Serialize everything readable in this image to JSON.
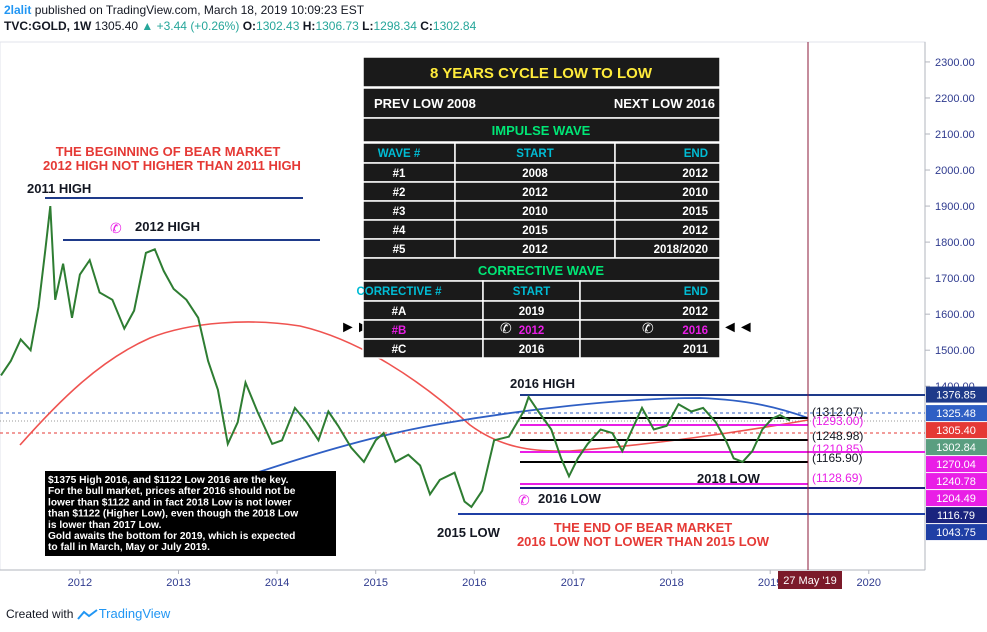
{
  "header": {
    "author": "2lalit",
    "published": "published on TradingView.com, March 18, 2019 10:09:23 EST",
    "symbol": "TVC:GOLD, 1W",
    "last": "1305.40",
    "change": "▲ +3.44 (+0.26%)",
    "ohlc": [
      {
        "key": "O:",
        "value": "1302.43"
      },
      {
        "key": "H:",
        "value": "1306.73"
      },
      {
        "key": "L:",
        "value": "1298.34"
      },
      {
        "key": "C:",
        "value": "1302.84"
      }
    ]
  },
  "chart_data": {
    "type": "line",
    "color": "#2e7d32",
    "x": [
      2011.2,
      2011.3,
      2011.4,
      2011.5,
      2011.58,
      2011.65,
      2011.7,
      2011.75,
      2011.83,
      2011.92,
      2012.0,
      2012.1,
      2012.2,
      2012.33,
      2012.45,
      2012.55,
      2012.67,
      2012.76,
      2012.85,
      2012.95,
      2013.08,
      2013.2,
      2013.3,
      2013.4,
      2013.5,
      2013.6,
      2013.68,
      2013.8,
      2013.95,
      2014.05,
      2014.18,
      2014.3,
      2014.42,
      2014.52,
      2014.62,
      2014.75,
      2014.88,
      2015.0,
      2015.08,
      2015.2,
      2015.33,
      2015.45,
      2015.55,
      2015.65,
      2015.8,
      2015.9,
      2015.97,
      2016.08,
      2016.2,
      2016.35,
      2016.5,
      2016.55,
      2016.65,
      2016.78,
      2016.88,
      2016.96,
      2017.05,
      2017.15,
      2017.28,
      2017.4,
      2017.5,
      2017.6,
      2017.7,
      2017.82,
      2017.95,
      2018.07,
      2018.2,
      2018.32,
      2018.45,
      2018.55,
      2018.63,
      2018.72,
      2018.82,
      2018.92,
      2019.02,
      2019.1,
      2019.2
    ],
    "values": [
      1430,
      1470,
      1530,
      1500,
      1620,
      1780,
      1900,
      1640,
      1740,
      1590,
      1710,
      1750,
      1660,
      1640,
      1560,
      1610,
      1770,
      1780,
      1720,
      1670,
      1640,
      1590,
      1470,
      1390,
      1240,
      1300,
      1410,
      1330,
      1240,
      1250,
      1340,
      1300,
      1250,
      1330,
      1290,
      1230,
      1190,
      1250,
      1270,
      1190,
      1210,
      1180,
      1100,
      1140,
      1160,
      1080,
      1065,
      1110,
      1250,
      1260,
      1330,
      1370,
      1330,
      1280,
      1200,
      1150,
      1200,
      1240,
      1280,
      1270,
      1220,
      1280,
      1340,
      1280,
      1290,
      1350,
      1330,
      1340,
      1300,
      1250,
      1200,
      1190,
      1220,
      1280,
      1310,
      1320,
      1305
    ],
    "xlim": [
      2011.19,
      2020.57
    ],
    "ylim": [
      890,
      2347
    ],
    "xticks": [
      2012,
      2013,
      2014,
      2015,
      2016,
      2017,
      2018,
      2019,
      2020
    ],
    "yticks": [
      {
        "value": 1400,
        "label": "1400.00"
      },
      {
        "value": 1500,
        "label": "1500.00"
      },
      {
        "value": 1600,
        "label": "1600.00"
      },
      {
        "value": 1700,
        "label": "1700.00"
      },
      {
        "value": 1800,
        "label": "1800.00"
      },
      {
        "value": 1900,
        "label": "1900.00"
      },
      {
        "value": 2000,
        "label": "2000.00"
      },
      {
        "value": 2100,
        "label": "2100.00"
      },
      {
        "value": 2200,
        "label": "2200.00"
      },
      {
        "value": 2300,
        "label": "2300.00"
      }
    ],
    "price_marks": [
      {
        "value": 1376.85,
        "color": "#1e3a8a"
      },
      {
        "value": 1325.48,
        "color": "#2f5fc4"
      },
      {
        "value": 1305.4,
        "label": "1305.40",
        "color": "#e53935"
      },
      {
        "value": 1302.84,
        "color": "#5a9e80"
      },
      {
        "value": 1270.04,
        "color": "#e91ee6"
      },
      {
        "value": 1240.78,
        "color": "#e91ee6"
      },
      {
        "value": 1204.49,
        "color": "#e91ee6"
      },
      {
        "value": 1116.79,
        "color": "#1a237e"
      },
      {
        "value": 1043.75,
        "color": "#1f3fa5"
      }
    ],
    "date_label": "27 May '19"
  },
  "annotations": {
    "bear_begin": [
      "THE BEGINNING OF BEAR MARKET",
      "2012 HIGH NOT HIGHER THAN 2011 HIGH"
    ],
    "high_2011": "2011 HIGH",
    "high_2012": "2012 HIGH",
    "high_2016": "2016 HIGH",
    "low_2016": "2016 LOW",
    "low_2015": "2015 LOW",
    "low_2018": "2018 LOW",
    "bear_end": [
      "THE END OF BEAR MARKET",
      "2016 LOW NOT LOWER THAN 2015 LOW"
    ],
    "levels": [
      "(1312.07)",
      "(1293.00)",
      "(1248.98)",
      "(1210.85)",
      "(1165.90)",
      "(1128.69)"
    ],
    "note": [
      "$1375 High 2016, and $1122 Low 2016 are the key.",
      "For the bull market, prices after 2016 should not be",
      "lower than $1122 and in fact 2018 Low is not lower",
      "than $1122 (Higher Low), even though the 2018 Low",
      "is lower than 2017 Low.",
      "Gold awaits the bottom for 2019, which is expected",
      "to fall in March, May or July 2019."
    ]
  },
  "table": {
    "title": "8 YEARS CYCLE LOW TO LOW",
    "prev": "PREV LOW 2008",
    "next": "NEXT LOW 2016",
    "impulse_title": "IMPULSE WAVE",
    "impulse_header": [
      "WAVE #",
      "START",
      "END"
    ],
    "impulse_rows": [
      [
        "#1",
        "2008",
        "2012"
      ],
      [
        "#2",
        "2012",
        "2010"
      ],
      [
        "#3",
        "2010",
        "2015"
      ],
      [
        "#4",
        "2015",
        "2012"
      ],
      [
        "#5",
        "2012",
        "2018/2020"
      ]
    ],
    "corrective_title": "CORRECTIVE WAVE",
    "corrective_header": [
      "CORRECTIVE #",
      "START",
      "END"
    ],
    "corrective_rows": [
      [
        "#A",
        "2019",
        "2012"
      ],
      [
        "#B",
        "2012",
        "2016"
      ],
      [
        "#C",
        "2016",
        "2011"
      ]
    ]
  },
  "footer": {
    "created": "Created with",
    "brand": "TradingView"
  }
}
